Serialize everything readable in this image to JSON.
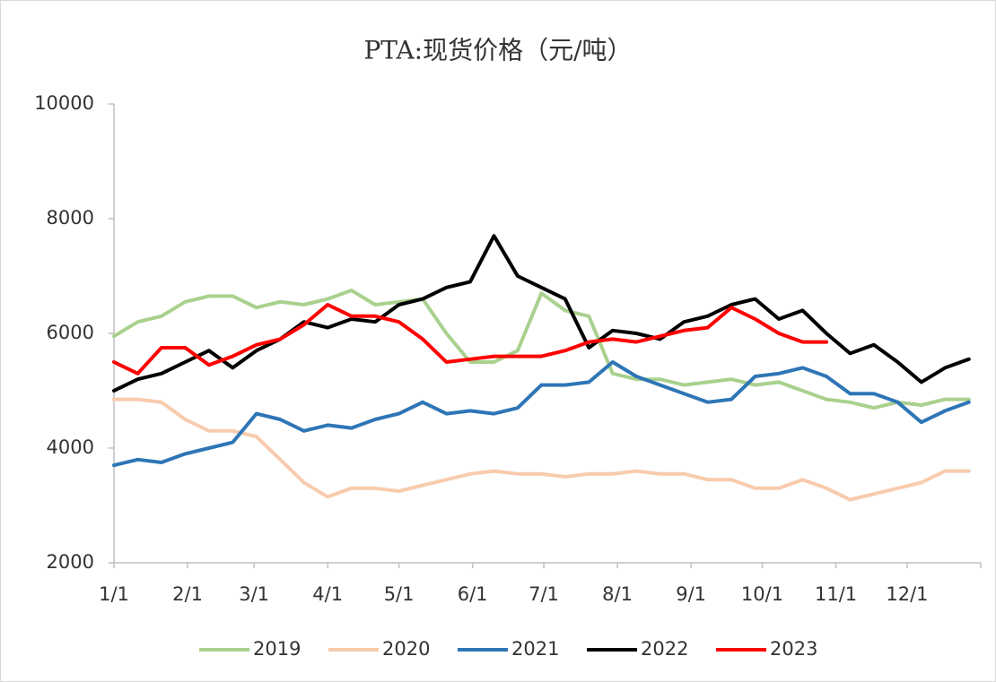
{
  "chart_data": {
    "type": "line",
    "title": "PTA:现货价格（元/吨）",
    "x": [
      0,
      10,
      20,
      30,
      40,
      50,
      60,
      70,
      80,
      90,
      100,
      110,
      120,
      130,
      140,
      150,
      160,
      170,
      180,
      190,
      200,
      210,
      220,
      230,
      240,
      250,
      260,
      270,
      280,
      290,
      300,
      310,
      320,
      330,
      340,
      350,
      360
    ],
    "xlim": [
      0,
      365
    ],
    "xticks": [
      {
        "value": 0,
        "label": "1/1"
      },
      {
        "value": 31,
        "label": "2/1"
      },
      {
        "value": 59,
        "label": "3/1"
      },
      {
        "value": 90,
        "label": "4/1"
      },
      {
        "value": 120,
        "label": "5/1"
      },
      {
        "value": 151,
        "label": "6/1"
      },
      {
        "value": 181,
        "label": "7/1"
      },
      {
        "value": 212,
        "label": "8/1"
      },
      {
        "value": 243,
        "label": "9/1"
      },
      {
        "value": 273,
        "label": "10/1"
      },
      {
        "value": 304,
        "label": "11/1"
      },
      {
        "value": 334,
        "label": "12/1"
      }
    ],
    "ylim": [
      2000,
      10000
    ],
    "yticks": [
      2000,
      4000,
      6000,
      8000,
      10000
    ],
    "grid": false,
    "legend": "bottom",
    "series": [
      {
        "name": "2019",
        "color": "#a9d18e",
        "values": [
          5950,
          6200,
          6300,
          6550,
          6650,
          6650,
          6450,
          6550,
          6500,
          6600,
          6750,
          6500,
          6550,
          6600,
          6000,
          5500,
          5500,
          5700,
          6700,
          6400,
          6300,
          5300,
          5200,
          5200,
          5100,
          5150,
          5200,
          5100,
          5150,
          5000,
          4850,
          4800,
          4700,
          4800,
          4750,
          4850,
          4850
        ]
      },
      {
        "name": "2020",
        "color": "#f8cbad",
        "values": [
          4850,
          4850,
          4800,
          4500,
          4300,
          4300,
          4200,
          3800,
          3400,
          3150,
          3300,
          3300,
          3250,
          3350,
          3450,
          3550,
          3600,
          3550,
          3550,
          3500,
          3550,
          3550,
          3600,
          3550,
          3550,
          3450,
          3450,
          3300,
          3300,
          3450,
          3300,
          3100,
          3200,
          3300,
          3400,
          3600,
          3600
        ]
      },
      {
        "name": "2021",
        "color": "#2e75b6",
        "values": [
          3700,
          3800,
          3750,
          3900,
          4000,
          4100,
          4600,
          4500,
          4300,
          4400,
          4350,
          4500,
          4600,
          4800,
          4600,
          4650,
          4600,
          4700,
          5100,
          5100,
          5150,
          5500,
          5250,
          5100,
          4950,
          4800,
          4850,
          5250,
          5300,
          5400,
          5250,
          4950,
          4950,
          4800,
          4450,
          4650,
          4800
        ]
      },
      {
        "name": "2022",
        "color": "#000000",
        "values": [
          5000,
          5200,
          5300,
          5500,
          5700,
          5400,
          5700,
          5900,
          6200,
          6100,
          6250,
          6200,
          6500,
          6600,
          6800,
          6900,
          7700,
          7000,
          6800,
          6600,
          5750,
          6050,
          6000,
          5900,
          6200,
          6300,
          6500,
          6600,
          6250,
          6400,
          6000,
          5650,
          5800,
          5500,
          5150,
          5400,
          5550
        ]
      },
      {
        "name": "2023",
        "color": "#ff0000",
        "values": [
          5500,
          5300,
          5750,
          5750,
          5450,
          5600,
          5800,
          5900,
          6150,
          6500,
          6300,
          6300,
          6200,
          5900,
          5500,
          5550,
          5600,
          5600,
          5600,
          5700,
          5850,
          5900,
          5850,
          5950,
          6050,
          6100,
          6450,
          6250,
          6000,
          5850,
          5850,
          null,
          null,
          null,
          null,
          null,
          null
        ]
      }
    ]
  }
}
